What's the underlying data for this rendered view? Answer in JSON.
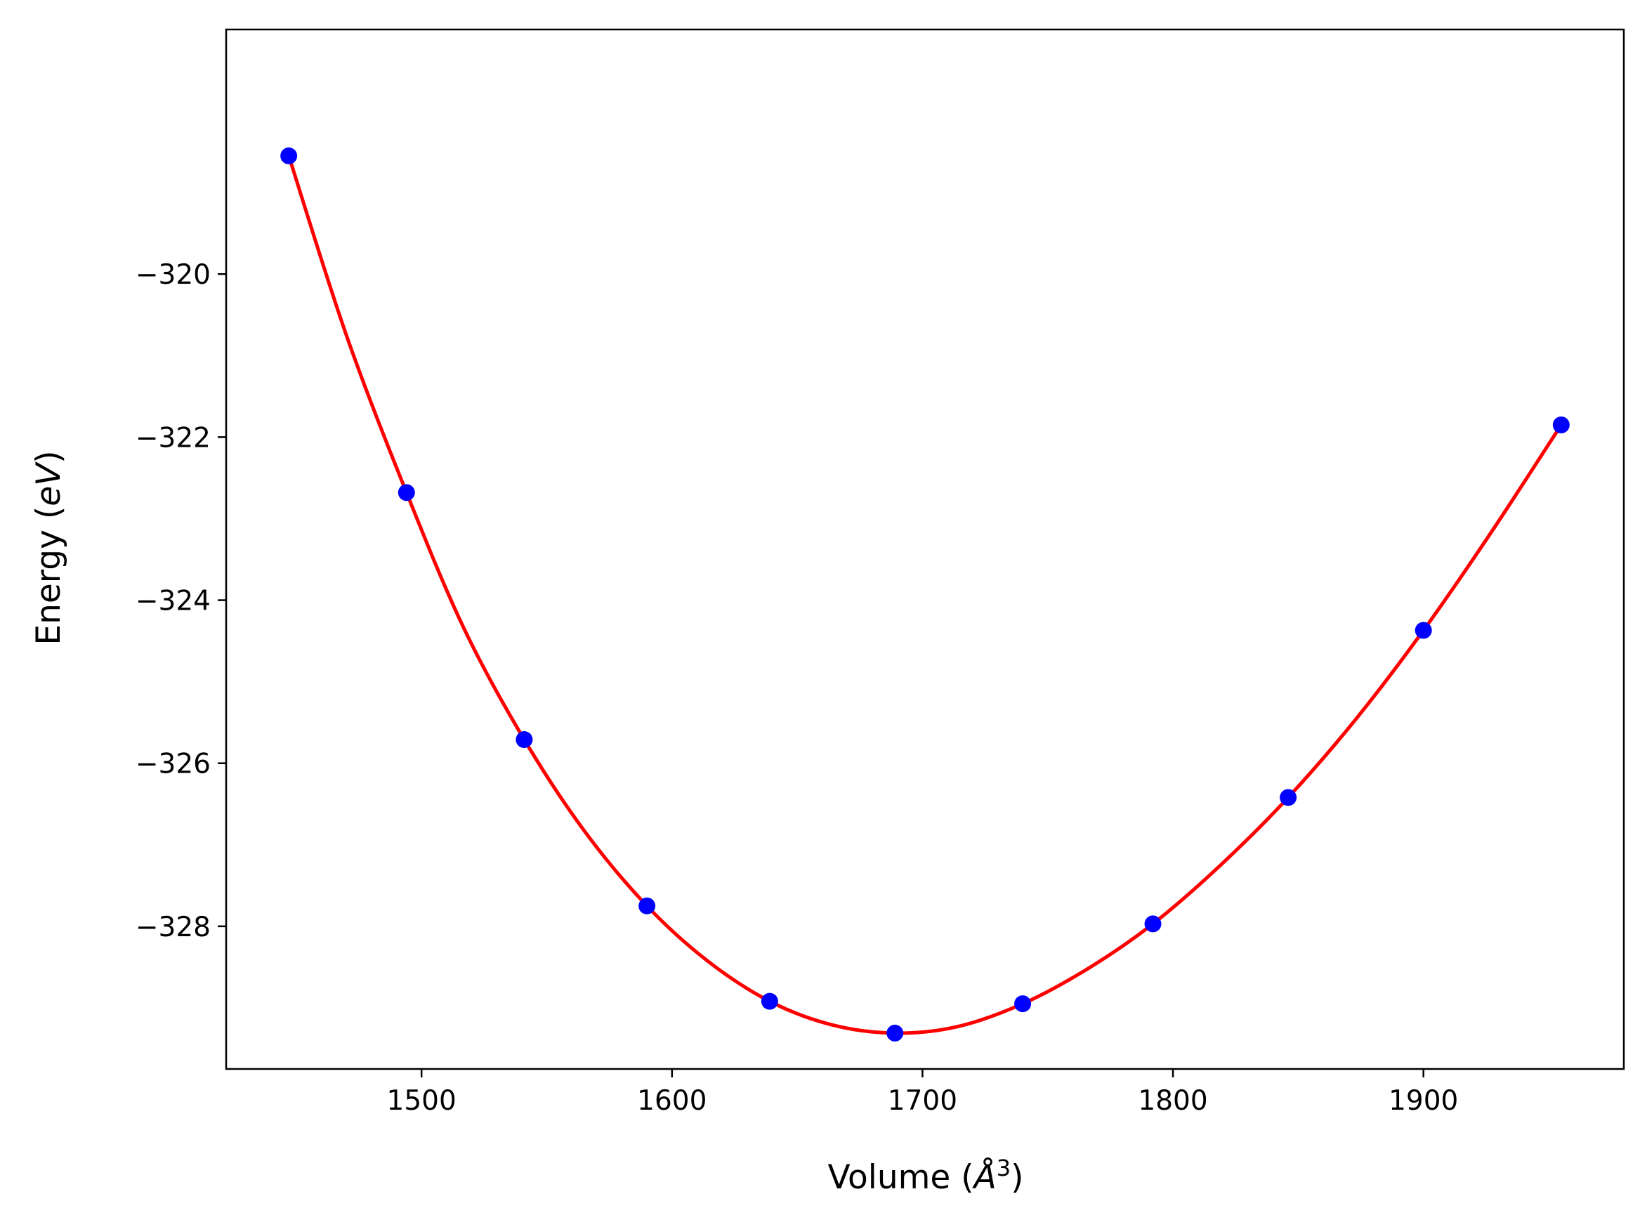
{
  "chart_data": {
    "type": "scatter",
    "title": "",
    "xlabel": "Volume (Å³)",
    "ylabel": "Energy (eV)",
    "xlabel_parts": {
      "pre": "Volume (",
      "unit": "Å",
      "sup": "3",
      "post": ")"
    },
    "ylabel_parts": {
      "pre": "Energy (",
      "unit": "eV",
      "post": ")"
    },
    "xlim": [
      1422,
      1980
    ],
    "ylim": [
      -329.75,
      -317.0
    ],
    "x_ticks": [
      1500,
      1600,
      1700,
      1800,
      1900
    ],
    "x_tick_labels": [
      "1500",
      "1600",
      "1700",
      "1800",
      "1900"
    ],
    "y_ticks": [
      -320,
      -322,
      -324,
      -326,
      -328
    ],
    "y_tick_labels": [
      "−320",
      "−322",
      "−324",
      "−326",
      "−328"
    ],
    "grid": false,
    "legend": "none",
    "series": [
      {
        "kind": "points",
        "color": "#0000ff",
        "x": [
          1447,
          1494,
          1541,
          1590,
          1639,
          1689,
          1740,
          1792,
          1846,
          1900,
          1955
        ],
        "y": [
          -318.55,
          -322.68,
          -325.71,
          -327.75,
          -328.92,
          -329.31,
          -328.95,
          -327.97,
          -326.42,
          -324.37,
          -321.85
        ]
      },
      {
        "kind": "fit-curve",
        "color": "#ff0000",
        "x": [
          1447,
          1470,
          1494,
          1517,
          1541,
          1565,
          1590,
          1614,
          1639,
          1664,
          1689,
          1714,
          1740,
          1766,
          1792,
          1819,
          1846,
          1873,
          1900,
          1927,
          1955
        ],
        "y": [
          -318.55,
          -320.75,
          -322.68,
          -324.35,
          -325.71,
          -326.83,
          -327.75,
          -328.42,
          -328.92,
          -329.21,
          -329.31,
          -329.23,
          -328.95,
          -328.52,
          -327.97,
          -327.25,
          -326.42,
          -325.46,
          -324.37,
          -323.17,
          -321.85
        ]
      }
    ]
  }
}
